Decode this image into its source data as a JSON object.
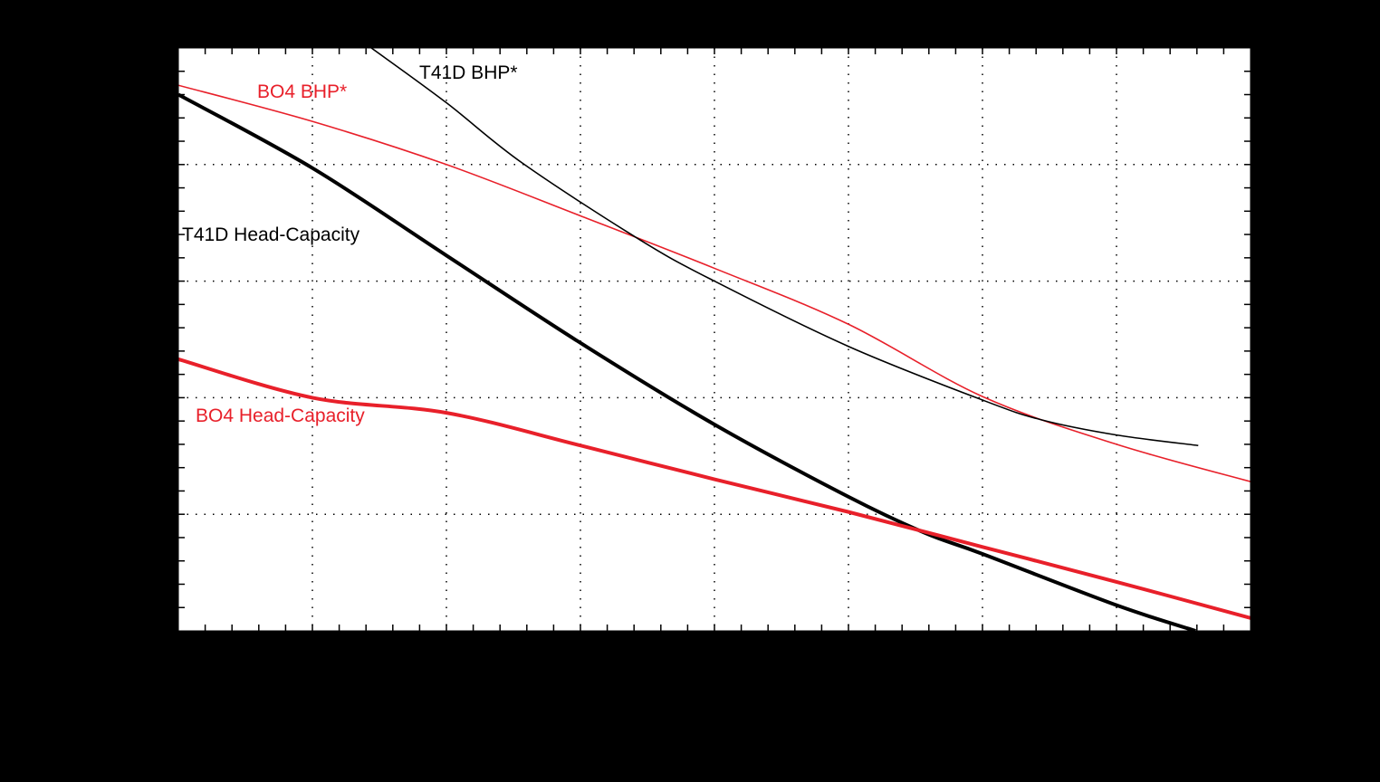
{
  "chart_data": {
    "type": "line",
    "title": "",
    "xlabel": "",
    "ylabel": "",
    "xlim": [
      0,
      8
    ],
    "ylim": [
      0,
      5
    ],
    "grid": true,
    "grid_style": "dotted",
    "x_major_ticks": [
      0,
      1,
      2,
      3,
      4,
      5,
      6,
      7,
      8
    ],
    "y_major_ticks": [
      0,
      1,
      2,
      3,
      4,
      5
    ],
    "minor_ticks_per_major": 5,
    "tick_labels_visible": false,
    "legend": "inline-labels",
    "series": [
      {
        "name": "T41D Head-Capacity",
        "color": "#000000",
        "width": 4,
        "x": [
          0,
          1,
          2,
          3,
          4,
          5,
          5.57,
          6,
          7,
          7.59
        ],
        "y": [
          4.6,
          3.97,
          3.22,
          2.47,
          1.77,
          1.15,
          0.84,
          0.66,
          0.22,
          0.0
        ]
      },
      {
        "name": "BO4 Head-Capacity",
        "color": "#e8202a",
        "width": 4,
        "x": [
          0,
          1,
          2,
          3,
          4,
          5,
          6,
          7,
          8
        ],
        "y": [
          2.33,
          2.0,
          1.87,
          1.59,
          1.3,
          1.02,
          0.72,
          0.42,
          0.11
        ]
      },
      {
        "name": "BO4 BHP*",
        "color": "#e8202a",
        "width": 1.6,
        "x": [
          0,
          1,
          2,
          3,
          4,
          5,
          6,
          7,
          8
        ],
        "y": [
          4.68,
          4.37,
          4.0,
          3.56,
          3.11,
          2.63,
          2.01,
          1.6,
          1.28
        ]
      },
      {
        "name": "T41D BHP*",
        "color": "#000000",
        "width": 1.6,
        "x": [
          1.44,
          2.0,
          2.57,
          3.45,
          4.0,
          5.0,
          6.0,
          6.44,
          7.0,
          7.61
        ],
        "y": [
          5.0,
          4.53,
          4.01,
          3.35,
          3.0,
          2.44,
          1.98,
          1.81,
          1.68,
          1.59
        ]
      }
    ],
    "annotations": [
      {
        "text": "T41D BHP*",
        "color": "#000000",
        "x": 1.79,
        "y": 4.87
      },
      {
        "text": "BO4 BHP*",
        "color": "#e8202a",
        "x": 0.59,
        "y": 4.6
      },
      {
        "text": "T41D Head-Capacity",
        "color": "#000000",
        "x": 0.03,
        "y": 3.4
      },
      {
        "text": "BO4 Head-Capacity",
        "color": "#e8202a",
        "x": 0.13,
        "y": 1.85
      }
    ]
  },
  "labels": {
    "t41d_bhp": "T41D BHP*",
    "bo4_bhp": "BO4 BHP*",
    "t41d_head": "T41D Head-Capacity",
    "bo4_head": "BO4 Head-Capacity"
  }
}
